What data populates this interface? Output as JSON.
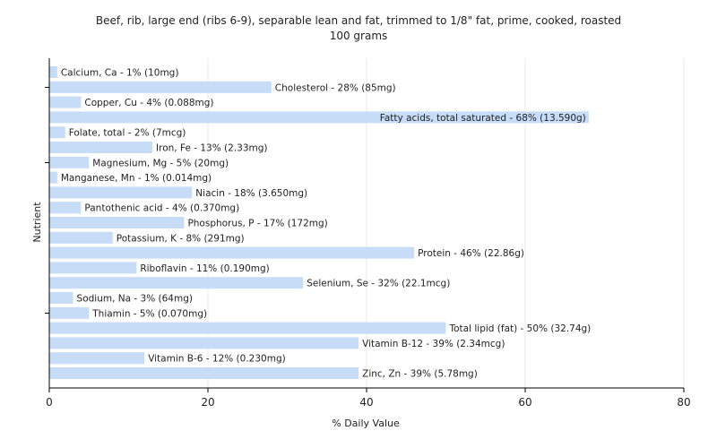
{
  "chart_data": {
    "type": "bar",
    "orientation": "horizontal",
    "title": "Beef, rib, large end (ribs 6-9), separable lean and fat, trimmed to 1/8\" fat, prime, cooked, roasted",
    "subtitle": "100 grams",
    "xlabel": "% Daily Value",
    "ylabel": "Nutrient",
    "xlim": [
      0,
      80
    ],
    "xticks": [
      "0",
      "20",
      "40",
      "60",
      "80"
    ],
    "grid": true,
    "categories": [
      "Calcium, Ca",
      "Cholesterol",
      "Copper, Cu",
      "Fatty acids, total saturated",
      "Folate, total",
      "Iron, Fe",
      "Magnesium, Mg",
      "Manganese, Mn",
      "Niacin",
      "Pantothenic acid",
      "Phosphorus, P",
      "Potassium, K",
      "Protein",
      "Riboflavin",
      "Selenium, Se",
      "Sodium, Na",
      "Thiamin",
      "Total lipid (fat)",
      "Vitamin B-12",
      "Vitamin B-6",
      "Zinc, Zn"
    ],
    "values": [
      1,
      28,
      4,
      68,
      2,
      13,
      5,
      1,
      18,
      4,
      17,
      8,
      46,
      11,
      32,
      3,
      5,
      50,
      39,
      12,
      39
    ],
    "labels": [
      "Calcium, Ca - 1% (10mg)",
      "Cholesterol - 28% (85mg)",
      "Copper, Cu - 4% (0.088mg)",
      "Fatty acids, total saturated - 68% (13.590g)",
      "Folate, total - 2% (7mcg)",
      "Iron, Fe - 13% (2.33mg)",
      "Magnesium, Mg - 5% (20mg)",
      "Manganese, Mn - 1% (0.014mg)",
      "Niacin - 18% (3.650mg)",
      "Pantothenic acid - 4% (0.370mg)",
      "Phosphorus, P - 17% (172mg)",
      "Potassium, K - 8% (291mg)",
      "Protein - 46% (22.86g)",
      "Riboflavin - 11% (0.190mg)",
      "Selenium, Se - 32% (22.1mcg)",
      "Sodium, Na - 3% (64mg)",
      "Thiamin - 5% (0.070mg)",
      "Total lipid (fat) - 50% (32.74g)",
      "Vitamin B-12 - 39% (2.34mcg)",
      "Vitamin B-6 - 12% (0.230mg)",
      "Zinc, Zn - 39% (5.78mg)"
    ],
    "bar_color": "#c6dcf7",
    "grid_color": "#e8e8e8",
    "axis_color": "#000000"
  }
}
